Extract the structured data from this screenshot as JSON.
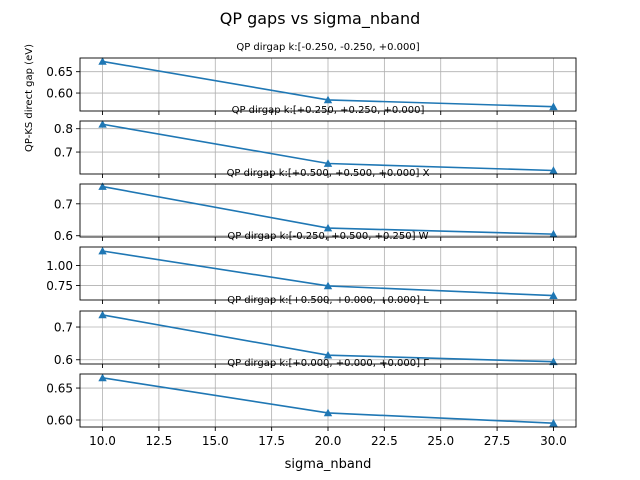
{
  "chart_data": {
    "type": "line",
    "title": "QP gaps vs sigma_nband",
    "xlabel": "sigma_nband",
    "ylabel": "QP-KS direct gap (eV)",
    "xlim": [
      9.0,
      31.0
    ],
    "xticks": [
      10.0,
      12.5,
      15.0,
      17.5,
      20.0,
      22.5,
      25.0,
      27.5,
      30.0
    ],
    "xtick_labels": [
      "10.0",
      "12.5",
      "15.0",
      "17.5",
      "20.0",
      "22.5",
      "25.0",
      "27.5",
      "30.0"
    ],
    "grid": true,
    "marker": "triangle",
    "color": "#1f77b4",
    "panels": [
      {
        "title": "QP dirgap k:[-0.250, -0.250, +0.000]",
        "x": [
          10,
          20,
          30
        ],
        "y": [
          0.674,
          0.584,
          0.568
        ],
        "ylim": [
          0.558,
          0.682
        ],
        "yticks": [
          0.6,
          0.65
        ],
        "ytick_labels": [
          "0.60",
          "0.65"
        ]
      },
      {
        "title": "QP dirgap k:[+0.250, +0.250, +0.000]",
        "x": [
          10,
          20,
          30
        ],
        "y": [
          0.819,
          0.651,
          0.621
        ],
        "ylim": [
          0.606,
          0.833
        ],
        "yticks": [
          0.7,
          0.8
        ],
        "ytick_labels": [
          "0.7",
          "0.8"
        ]
      },
      {
        "title": "QP dirgap k:[+0.500, +0.500, +0.000] X",
        "x": [
          10,
          20,
          30
        ],
        "y": [
          0.754,
          0.624,
          0.605
        ],
        "ylim": [
          0.596,
          0.762
        ],
        "yticks": [
          0.6,
          0.7
        ],
        "ytick_labels": [
          "0.6",
          "0.7"
        ]
      },
      {
        "title": "QP dirgap k:[-0.250, +0.500, +0.250] W",
        "x": [
          10,
          20,
          30
        ],
        "y": [
          1.18,
          0.745,
          0.625
        ],
        "ylim": [
          0.57,
          1.23
        ],
        "yticks": [
          0.75,
          1.0
        ],
        "ytick_labels": [
          "0.75",
          "1.00"
        ]
      },
      {
        "title": "QP dirgap k:[+0.500, +0.000, +0.000] L",
        "x": [
          10,
          20,
          30
        ],
        "y": [
          0.737,
          0.614,
          0.594
        ],
        "ylim": [
          0.587,
          0.749
        ],
        "yticks": [
          0.6,
          0.7
        ],
        "ytick_labels": [
          "0.6",
          "0.7"
        ]
      },
      {
        "title": "QP dirgap k:[+0.000, +0.000, +0.000] Γ",
        "x": [
          10,
          20,
          30
        ],
        "y": [
          0.666,
          0.611,
          0.595
        ],
        "ylim": [
          0.589,
          0.672
        ],
        "yticks": [
          0.6,
          0.65
        ],
        "ytick_labels": [
          "0.60",
          "0.65"
        ]
      }
    ]
  }
}
